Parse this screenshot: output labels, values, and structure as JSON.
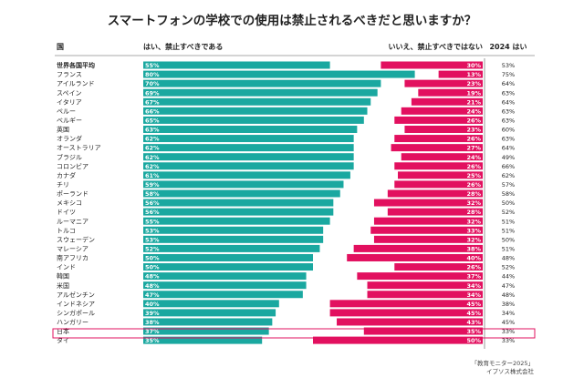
{
  "chart_data": {
    "type": "bar",
    "title": "スマートフォンの学校での使用は禁止されるべきだと思いますか？",
    "headers": {
      "country": "国",
      "yes": "はい、禁止すべきである",
      "no": "いいえ、禁止すべきではない",
      "yes_2024": "2024 はい"
    },
    "categories": [
      "世界各国平均",
      "フランス",
      "アイルランド",
      "スペイン",
      "イタリア",
      "ペルー",
      "ベルギー",
      "英国",
      "オランダ",
      "オーストラリア",
      "ブラジル",
      "コロンビア",
      "カナダ",
      "チリ",
      "ポーランド",
      "メキシコ",
      "ドイツ",
      "ルーマニア",
      "トルコ",
      "スウェーデン",
      "マレーシア",
      "南アフリカ",
      "インド",
      "韓国",
      "米国",
      "アルゼンチン",
      "インドネシア",
      "シンガポール",
      "ハンガリー",
      "日本",
      "タイ"
    ],
    "series": [
      {
        "name": "はい、禁止すべきである",
        "values": [
          55,
          80,
          70,
          69,
          67,
          66,
          65,
          63,
          62,
          62,
          62,
          62,
          61,
          59,
          58,
          56,
          56,
          55,
          53,
          53,
          52,
          50,
          50,
          48,
          48,
          47,
          40,
          39,
          38,
          37,
          35
        ]
      },
      {
        "name": "いいえ、禁止すべきではない",
        "values": [
          30,
          13,
          23,
          19,
          21,
          24,
          26,
          23,
          26,
          27,
          24,
          26,
          25,
          26,
          28,
          32,
          28,
          32,
          33,
          32,
          38,
          40,
          26,
          37,
          34,
          34,
          45,
          45,
          43,
          35,
          50
        ]
      },
      {
        "name": "2024 はい",
        "values": [
          "53%",
          "75%",
          "64%",
          "63%",
          "64%",
          "63%",
          "63%",
          "60%",
          "63%",
          "64%",
          "49%",
          "66%",
          "62%",
          "57%",
          "58%",
          "50%",
          "52%",
          "51%",
          "51%",
          "50%",
          "51%",
          "48%",
          "52%",
          "44%",
          "47%",
          "48%",
          "38%",
          "34%",
          "45%",
          "33%",
          "33%"
        ]
      }
    ],
    "highlight_category": "日本",
    "colors": {
      "yes": "#1aa8a0",
      "no": "#e2105f",
      "highlight_box": "#e2105f",
      "separator": "#555555"
    },
    "xlim": [
      0,
      100
    ]
  },
  "footer": {
    "source": "「教育モニター2025」",
    "company": "イプソス株式会社"
  }
}
